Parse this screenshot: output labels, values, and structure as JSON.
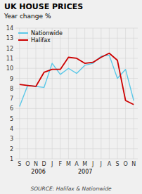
{
  "chart_data": {
    "type": "line",
    "title": "UK HOUSE PRICES",
    "subtitle": "Year change %",
    "source": "SOURCE: Halifax & Nationwide",
    "annotations": [
      "2006",
      "2007"
    ],
    "categories": [
      "S",
      "O",
      "N",
      "D",
      "J",
      "F",
      "M",
      "A",
      "M",
      "J",
      "J",
      "A",
      "S",
      "O",
      "N"
    ],
    "series": [
      {
        "name": "Nationwide",
        "color": "#5bc8e8",
        "values": [
          6.2,
          8.3,
          8.2,
          8.1,
          10.5,
          9.4,
          10.0,
          9.5,
          10.3,
          10.5,
          11.2,
          11.3,
          9.0,
          9.9,
          6.8
        ]
      },
      {
        "name": "Halifax",
        "color": "#cc0000",
        "values": [
          8.4,
          8.3,
          8.2,
          9.6,
          9.9,
          9.9,
          11.1,
          11.0,
          10.5,
          10.6,
          11.1,
          11.5,
          10.8,
          6.8,
          6.4
        ]
      }
    ],
    "ylim": [
      1,
      14
    ],
    "yticks": [
      1,
      2,
      3,
      4,
      5,
      6,
      7,
      8,
      9,
      10,
      11,
      12,
      13,
      14
    ],
    "grid": true,
    "legend": "upper left"
  }
}
